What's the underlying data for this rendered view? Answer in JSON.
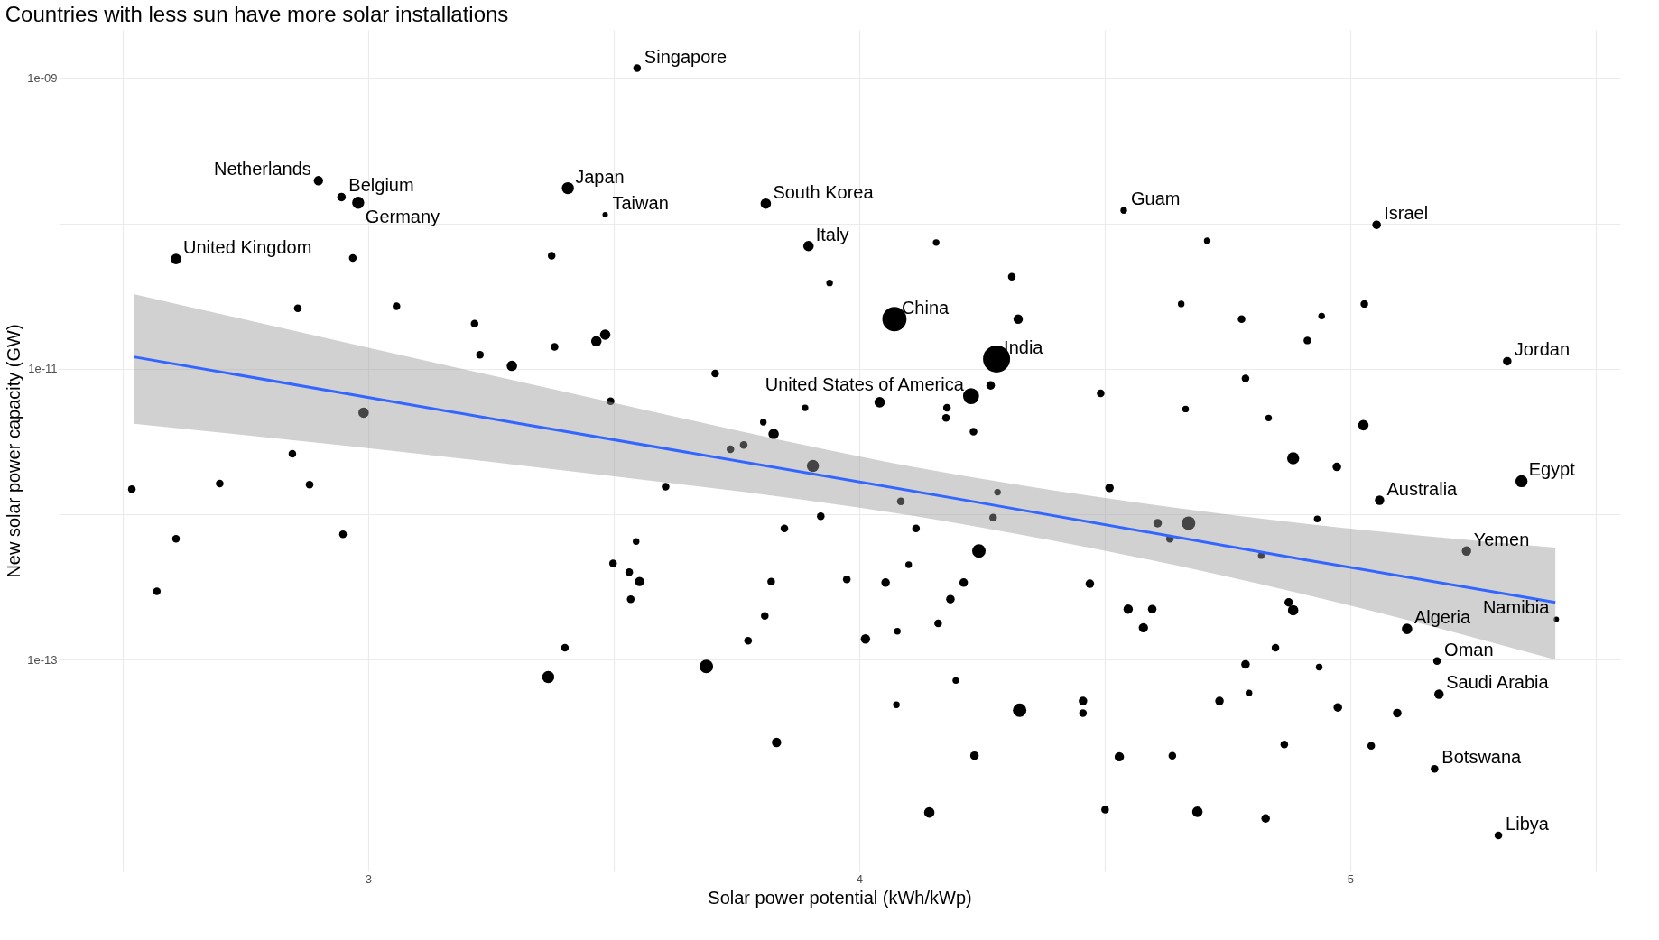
{
  "chart_data": {
    "type": "bubble",
    "title": "Countries with less sun have more solar installations",
    "xlabel": "Solar power potential (kWh/kWp)",
    "ylabel": "New solar power capacity (GW)",
    "log": "y",
    "grid": true,
    "legend": false,
    "xlim": [
      2.37,
      5.55
    ],
    "xticks": [
      {
        "value": 2.5,
        "label": null
      },
      3,
      {
        "value": 3.5,
        "label": null
      },
      4,
      {
        "value": 4.5,
        "label": null
      },
      5,
      {
        "value": 5.5,
        "label": null
      }
    ],
    "ylim": [
      3.5e-15,
      2.15e-09
    ],
    "yticks": [
      {
        "value": 1e-14,
        "label": null
      },
      {
        "value": 1e-13,
        "label": "1e-13"
      },
      {
        "value": 1e-12,
        "label": null
      },
      {
        "value": 1e-11,
        "label": "1e-11"
      },
      {
        "value": 1e-10,
        "label": null
      },
      {
        "value": 1e-09,
        "label": "1e-09"
      }
    ],
    "series": [
      {
        "type": "bubble",
        "color": "#000000",
        "marker": "circle",
        "x": [
          3.548,
          2.946,
          2.899,
          2.98,
          3.407,
          3.483,
          3.81,
          3.897,
          4.539,
          5.054,
          2.609,
          4.072,
          4.28,
          4.228,
          5.32,
          5.349,
          5.06,
          5.237,
          5.42,
          5.116,
          5.177,
          5.181,
          5.172,
          5.302,
          2.519,
          2.609,
          2.57,
          2.698,
          2.846,
          2.881,
          2.949,
          2.857,
          2.969,
          2.991,
          3.058,
          3.217,
          3.228,
          3.293,
          3.374,
          3.38,
          3.465,
          3.483,
          3.494,
          3.367,
          3.401,
          3.499,
          3.532,
          3.553,
          3.535,
          3.546,
          3.606,
          3.689,
          3.707,
          3.738,
          3.765,
          3.805,
          3.826,
          3.808,
          3.821,
          3.774,
          3.848,
          3.832,
          3.89,
          3.906,
          3.922,
          3.94,
          3.975,
          4.013,
          4.042,
          4.054,
          4.085,
          4.076,
          4.078,
          4.101,
          4.116,
          4.157,
          4.143,
          4.179,
          4.177,
          4.186,
          4.197,
          4.213,
          4.161,
          4.233,
          4.235,
          4.244,
          4.268,
          4.273,
          4.282,
          4.311,
          4.324,
          4.327,
          4.456,
          4.456,
          4.47,
          4.492,
          4.501,
          4.51,
          4.53,
          4.548,
          4.579,
          4.597,
          4.608,
          4.633,
          4.671,
          4.638,
          4.656,
          4.665,
          4.689,
          4.709,
          4.734,
          4.779,
          4.787,
          4.787,
          4.794,
          4.819,
          4.828,
          4.834,
          4.848,
          4.866,
          4.875,
          4.884,
          4.884,
          4.913,
          4.933,
          4.937,
          4.942,
          4.973,
          4.975,
          5.027,
          5.029,
          5.043,
          5.096
        ],
        "values": [
          1.17e-09,
          1.52e-10,
          1.97e-10,
          1.39e-10,
          1.75e-10,
          1.15e-10,
          1.37e-10,
          7e-11,
          1.23e-10,
          9.8e-11,
          5.7e-11,
          2.2e-11,
          1.17e-11,
          6.5e-12,
          1.13e-11,
          1.69e-12,
          1.25e-12,
          5.6e-13,
          1.9e-13,
          1.63e-13,
          9.8e-14,
          5.8e-14,
          1.78e-14,
          6.2e-15,
          1.49e-12,
          6.8e-13,
          2.95e-13,
          1.63e-12,
          2.61e-12,
          1.6e-12,
          7.3e-13,
          2.61e-11,
          5.8e-11,
          5e-12,
          2.7e-11,
          2.05e-11,
          1.25e-11,
          1.05e-11,
          6e-11,
          1.42e-11,
          1.55e-11,
          1.72e-11,
          6e-12,
          7.6e-14,
          1.21e-13,
          4.6e-13,
          4e-13,
          3.45e-13,
          2.61e-13,
          6.5e-13,
          1.55e-12,
          9e-14,
          9.3e-12,
          2.8e-12,
          3e-12,
          4.3e-12,
          3.57e-12,
          2e-13,
          3.45e-13,
          1.35e-13,
          8e-13,
          2.7e-14,
          5.4e-12,
          2.15e-12,
          9.7e-13,
          3.9e-11,
          3.57e-13,
          1.39e-13,
          5.9e-12,
          3.39e-13,
          1.23e-12,
          4.9e-14,
          1.57e-13,
          4.5e-13,
          8e-13,
          7.4e-11,
          8.9e-15,
          5.4e-12,
          4.6e-12,
          2.61e-13,
          7.2e-14,
          3.39e-13,
          1.78e-13,
          3.7e-12,
          2.19e-14,
          5.6e-13,
          7.7e-12,
          9.5e-13,
          1.42e-12,
          4.3e-11,
          2.2e-11,
          4.5e-14,
          5.2e-14,
          4.3e-14,
          3.33e-13,
          6.8e-12,
          9.3e-15,
          1.52e-12,
          2.15e-14,
          2.23e-13,
          1.66e-13,
          2.23e-13,
          8.7e-13,
          6.8e-13,
          8.7e-13,
          2.19e-14,
          2.8e-11,
          5.3e-12,
          9e-15,
          7.6e-11,
          5.2e-14,
          2.2e-11,
          8.6e-12,
          9.3e-14,
          5.9e-14,
          5.2e-13,
          8.1e-15,
          4.6e-12,
          1.21e-13,
          2.61e-14,
          2.48e-13,
          2.19e-13,
          2.43e-12,
          1.57e-11,
          9.3e-13,
          8.9e-14,
          2.31e-11,
          2.12e-12,
          4.7e-14,
          4.1e-12,
          2.8e-11,
          2.56e-14,
          4.3e-14
        ],
        "sizes": [
          0.08,
          0.1,
          0.12,
          0.2,
          0.2,
          0.04,
          0.15,
          0.15,
          0.06,
          0.1,
          0.15,
          0.8,
          1,
          0.35,
          0.1,
          0.2,
          0.12,
          0.12,
          0.04,
          0.15,
          0.08,
          0.12,
          0.08,
          0.08,
          0.08,
          0.08,
          0.08,
          0.08,
          0.08,
          0.08,
          0.08,
          0.08,
          0.08,
          0.15,
          0.08,
          0.08,
          0.08,
          0.15,
          0.08,
          0.08,
          0.15,
          0.15,
          0.08,
          0.2,
          0.08,
          0.08,
          0.08,
          0.12,
          0.08,
          0.06,
          0.08,
          0.25,
          0.08,
          0.08,
          0.08,
          0.06,
          0.15,
          0.08,
          0.08,
          0.08,
          0.08,
          0.12,
          0.06,
          0.2,
          0.08,
          0.06,
          0.08,
          0.12,
          0.15,
          0.1,
          0.08,
          0.06,
          0.06,
          0.06,
          0.08,
          0.06,
          0.15,
          0.08,
          0.08,
          0.1,
          0.06,
          0.1,
          0.08,
          0.08,
          0.1,
          0.25,
          0.1,
          0.08,
          0.06,
          0.08,
          0.12,
          0.25,
          0.1,
          0.08,
          0.1,
          0.08,
          0.08,
          0.1,
          0.12,
          0.12,
          0.12,
          0.1,
          0.1,
          0.08,
          0.25,
          0.08,
          0.06,
          0.06,
          0.15,
          0.06,
          0.1,
          0.08,
          0.08,
          0.1,
          0.06,
          0.06,
          0.1,
          0.06,
          0.08,
          0.08,
          0.1,
          0.15,
          0.2,
          0.08,
          0.06,
          0.06,
          0.06,
          0.1,
          0.1,
          0.15,
          0.08,
          0.08,
          0.1
        ]
      },
      {
        "type": "line",
        "color": "#3366ff",
        "x": [
          2.523,
          3.3,
          4.2,
          4.9,
          5.418
        ],
        "values": [
          1.21e-11,
          4.26e-12,
          1.28e-12,
          4.93e-13,
          2.48e-13
        ],
        "lower": [
          4.2e-12,
          2.19e-12,
          8.7e-13,
          2.85e-13,
          1e-13
        ],
        "upper": [
          3.27e-11,
          8.3e-12,
          1.87e-12,
          8.7e-13,
          5.9e-13
        ]
      }
    ],
    "annotations": [
      {
        "text": "Singapore",
        "x": 3.548,
        "y": 1.17e-09
      },
      {
        "text": "Belgium",
        "x": 2.946,
        "y": 1.52e-10
      },
      {
        "text": "Netherlands",
        "x": 2.899,
        "y": 1.97e-10
      },
      {
        "text": "Germany",
        "x": 2.98,
        "y": 1.39e-10
      },
      {
        "text": "Japan",
        "x": 3.407,
        "y": 1.75e-10
      },
      {
        "text": "Taiwan",
        "x": 3.483,
        "y": 1.15e-10
      },
      {
        "text": "South Korea",
        "x": 3.81,
        "y": 1.37e-10
      },
      {
        "text": "Italy",
        "x": 3.897,
        "y": 7e-11
      },
      {
        "text": "Guam",
        "x": 4.539,
        "y": 1.23e-10
      },
      {
        "text": "Israel",
        "x": 5.054,
        "y": 9.8e-11
      },
      {
        "text": "United Kingdom",
        "x": 2.609,
        "y": 5.7e-11
      },
      {
        "text": "China",
        "x": 4.072,
        "y": 2.2e-11
      },
      {
        "text": "India",
        "x": 4.28,
        "y": 1.17e-11
      },
      {
        "text": "United States of America",
        "x": 4.228,
        "y": 6.5e-12
      },
      {
        "text": "Jordan",
        "x": 5.32,
        "y": 1.13e-11
      },
      {
        "text": "Egypt",
        "x": 5.349,
        "y": 1.69e-12
      },
      {
        "text": "Australia",
        "x": 5.06,
        "y": 1.25e-12
      },
      {
        "text": "Yemen",
        "x": 5.237,
        "y": 5.6e-13
      },
      {
        "text": "Namibia",
        "x": 5.42,
        "y": 1.9e-13
      },
      {
        "text": "Algeria",
        "x": 5.116,
        "y": 1.63e-13
      },
      {
        "text": "Oman",
        "x": 5.177,
        "y": 9.8e-14
      },
      {
        "text": "Saudi Arabia",
        "x": 5.181,
        "y": 5.8e-14
      },
      {
        "text": "Botswana",
        "x": 5.172,
        "y": 1.78e-14
      },
      {
        "text": "Libya",
        "x": 5.302,
        "y": 6.2e-15
      }
    ]
  }
}
